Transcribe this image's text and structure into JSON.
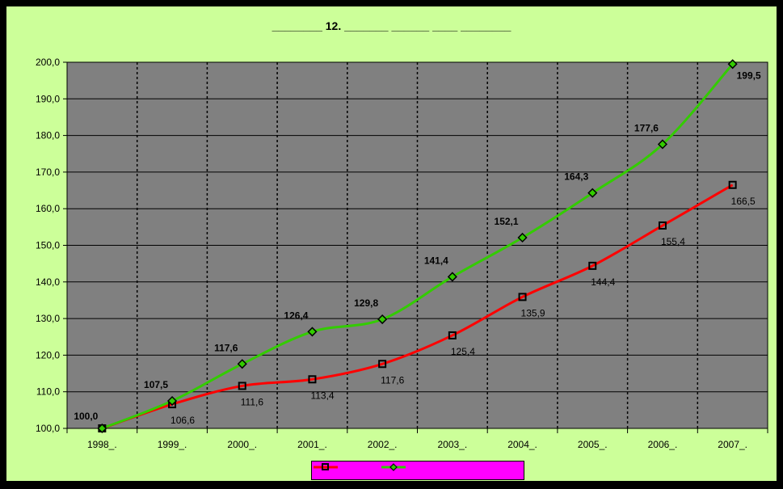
{
  "chart_data": {
    "type": "line",
    "title": "________ 12. _______ ______ ____ ________",
    "categories": [
      "1998_.",
      "1999_.",
      "2000_.",
      "2001_.",
      "2002_.",
      "2003_.",
      "2004_.",
      "2005_.",
      "2006_.",
      "2007_."
    ],
    "y_ticks": [
      "100,0",
      "110,0",
      "120,0",
      "130,0",
      "140,0",
      "150,0",
      "160,0",
      "170,0",
      "180,0",
      "190,0",
      "200,0"
    ],
    "ylim": [
      100,
      200
    ],
    "grid": true,
    "legend_position": "bottom",
    "series": [
      {
        "color": "#ff0000",
        "marker": "square",
        "values": [
          100.0,
          106.6,
          111.6,
          113.4,
          117.6,
          125.4,
          135.9,
          144.4,
          155.4,
          166.5
        ],
        "labels": [
          "",
          "106,6",
          "111,6",
          "113,4",
          "117,6",
          "125,4",
          "135,9",
          "144,4",
          "155,4",
          "166,5"
        ]
      },
      {
        "color": "#33cc00",
        "marker": "diamond",
        "values": [
          100.0,
          107.5,
          117.6,
          126.4,
          129.8,
          141.4,
          152.1,
          164.3,
          177.6,
          199.5
        ],
        "labels": [
          "100,0",
          "107,5",
          "117,6",
          "126,4",
          "129,8",
          "141,4",
          "152,1",
          "164,3",
          "177,6",
          "199,5"
        ]
      }
    ]
  }
}
